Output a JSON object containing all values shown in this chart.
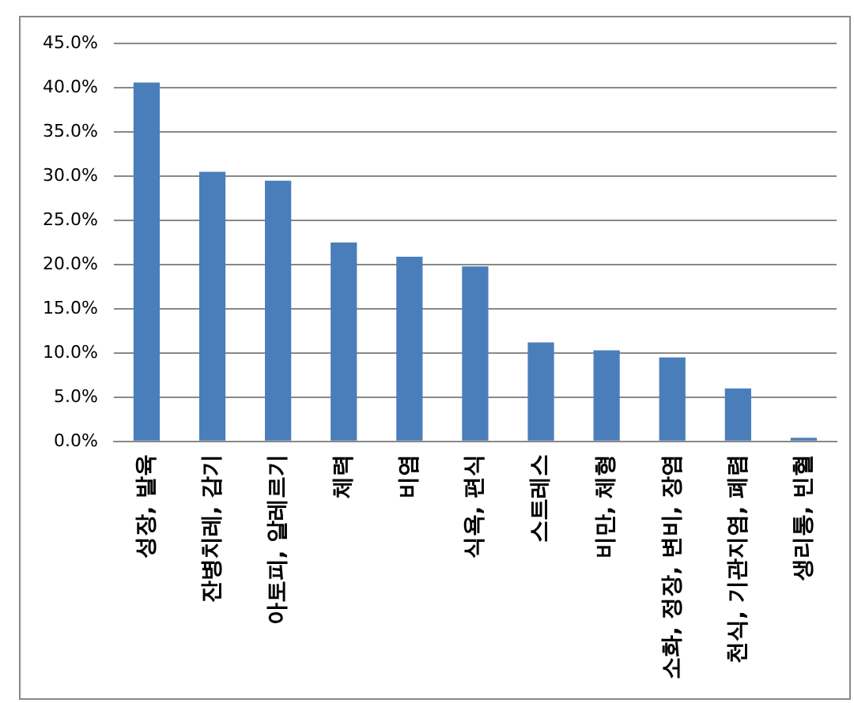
{
  "chart_data": {
    "type": "bar",
    "categories": [
      "성장, 발육",
      "잔병치레, 감기",
      "아토피, 알레르기",
      "체력",
      "비염",
      "식욕, 편식",
      "스트레스",
      "비만, 체형",
      "소화, 정장, 변비, 장염",
      "천식, 기관지염, 폐렴",
      "생리통, 빈혈"
    ],
    "values": [
      40.6,
      30.5,
      29.5,
      22.5,
      20.9,
      19.8,
      11.2,
      10.3,
      9.5,
      6.0,
      0.4
    ],
    "color": "#4a7ebb",
    "ylim": [
      0,
      45
    ],
    "yticks": [
      {
        "value": 0,
        "label": "0.0%"
      },
      {
        "value": 5,
        "label": "5.0%"
      },
      {
        "value": 10,
        "label": "10.0%"
      },
      {
        "value": 15,
        "label": "15.0%"
      },
      {
        "value": 20,
        "label": "20.0%"
      },
      {
        "value": 25,
        "label": "25.0%"
      },
      {
        "value": 30,
        "label": "30.0%"
      },
      {
        "value": 35,
        "label": "35.0%"
      },
      {
        "value": 40,
        "label": "40.0%"
      },
      {
        "value": 45,
        "label": "45.0%"
      }
    ],
    "grid": "y",
    "legend": false
  }
}
